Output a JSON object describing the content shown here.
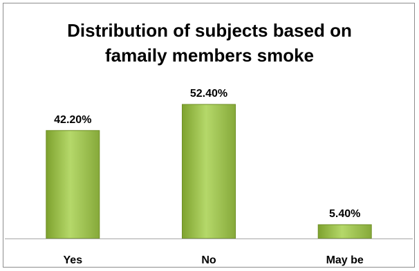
{
  "chart_data": {
    "type": "bar",
    "title_lines": [
      "Distribution of subjects based on",
      "famaily members smoke"
    ],
    "categories": [
      "Yes",
      "No",
      "May be"
    ],
    "values": [
      42.2,
      52.4,
      5.4
    ],
    "data_labels": [
      "42.20%",
      "52.40%",
      "5.40%"
    ],
    "value_unit": "%",
    "ylim": [
      0,
      60
    ],
    "grid": false,
    "legend": "none",
    "bar_colors": {
      "left": "#7ea22e",
      "mid": "#b5d86a",
      "right": "#86a93a",
      "stroke": "#6f8f26"
    },
    "axis_color": "#a6a6a6"
  }
}
